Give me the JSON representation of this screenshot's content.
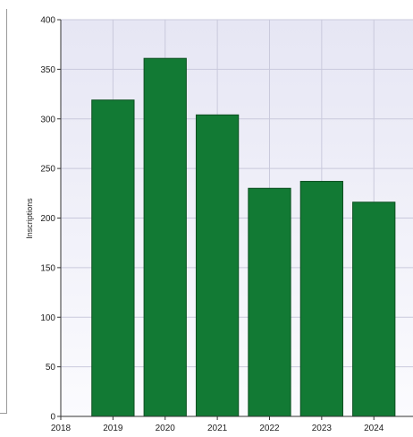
{
  "chart_data": {
    "type": "bar",
    "categories": [
      "2019",
      "2020",
      "2021",
      "2022",
      "2023",
      "2024"
    ],
    "values": [
      319,
      361,
      304,
      230,
      237,
      216
    ],
    "title": "",
    "xlabel": "",
    "ylabel": "Inscriptions",
    "ylim": [
      0,
      400
    ],
    "y_ticks": [
      0,
      50,
      100,
      150,
      200,
      250,
      300,
      350,
      400
    ],
    "x_ticks": [
      "2018",
      "2019",
      "2020",
      "2021",
      "2022",
      "2023",
      "2024"
    ],
    "grid": true,
    "colors": {
      "bar": "#127a34",
      "bar_edge": "#0b4f20",
      "plot_bg_top": "#e6e6f4",
      "plot_bg_bottom": "#fbfbfe",
      "grid": "#c9c9dc"
    }
  }
}
